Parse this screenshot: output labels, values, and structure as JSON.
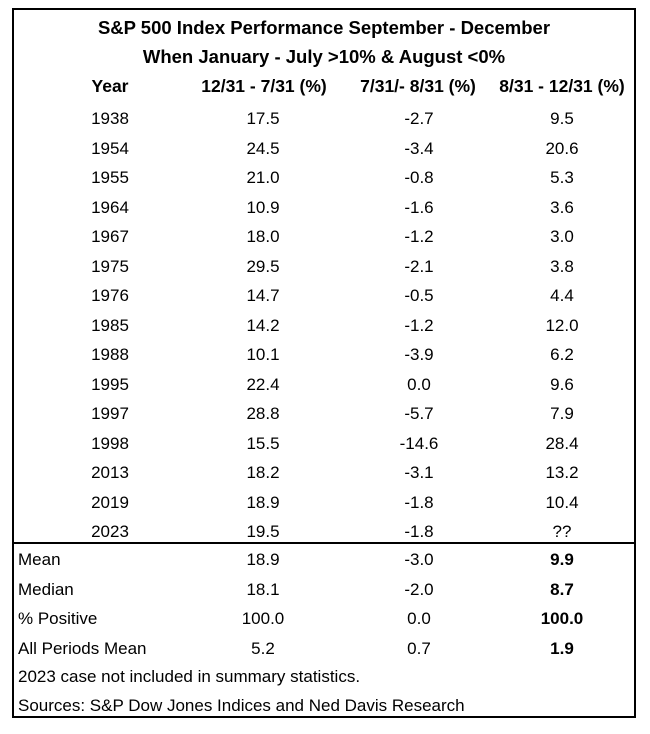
{
  "title": {
    "line1": "S&P 500 Index Performance September - December",
    "line2": "When January - July >10% & August <0%"
  },
  "headers": {
    "year": "Year",
    "col1": "12/31 - 7/31 (%)",
    "col2": "7/31/- 8/31 (%)",
    "col3": "8/31 - 12/31 (%)"
  },
  "rows": [
    {
      "year": "1938",
      "c1": "17.5",
      "c2": "-2.7",
      "c3": "9.5"
    },
    {
      "year": "1954",
      "c1": "24.5",
      "c2": "-3.4",
      "c3": "20.6"
    },
    {
      "year": "1955",
      "c1": "21.0",
      "c2": "-0.8",
      "c3": "5.3"
    },
    {
      "year": "1964",
      "c1": "10.9",
      "c2": "-1.6",
      "c3": "3.6"
    },
    {
      "year": "1967",
      "c1": "18.0",
      "c2": "-1.2",
      "c3": "3.0"
    },
    {
      "year": "1975",
      "c1": "29.5",
      "c2": "-2.1",
      "c3": "3.8"
    },
    {
      "year": "1976",
      "c1": "14.7",
      "c2": "-0.5",
      "c3": "4.4"
    },
    {
      "year": "1985",
      "c1": "14.2",
      "c2": "-1.2",
      "c3": "12.0"
    },
    {
      "year": "1988",
      "c1": "10.1",
      "c2": "-3.9",
      "c3": "6.2"
    },
    {
      "year": "1995",
      "c1": "22.4",
      "c2": "0.0",
      "c3": "9.6"
    },
    {
      "year": "1997",
      "c1": "28.8",
      "c2": "-5.7",
      "c3": "7.9"
    },
    {
      "year": "1998",
      "c1": "15.5",
      "c2": "-14.6",
      "c3": "28.4"
    },
    {
      "year": "2013",
      "c1": "18.2",
      "c2": "-3.1",
      "c3": "13.2"
    },
    {
      "year": "2019",
      "c1": "18.9",
      "c2": "-1.8",
      "c3": "10.4"
    },
    {
      "year": "2023",
      "c1": "19.5",
      "c2": "-1.8",
      "c3": "??"
    }
  ],
  "summary": [
    {
      "label": "Mean",
      "c1": "18.9",
      "c2": "-3.0",
      "c3": "9.9"
    },
    {
      "label": "Median",
      "c1": "18.1",
      "c2": "-2.0",
      "c3": "8.7"
    },
    {
      "label": "% Positive",
      "c1": "100.0",
      "c2": "0.0",
      "c3": "100.0"
    },
    {
      "label": "All Periods Mean",
      "c1": "5.2",
      "c2": "0.7",
      "c3": "1.9"
    }
  ],
  "notes": {
    "note1": "2023 case not included in summary statistics.",
    "note2": "Sources: S&P Dow Jones Indices and Ned Davis Research"
  }
}
